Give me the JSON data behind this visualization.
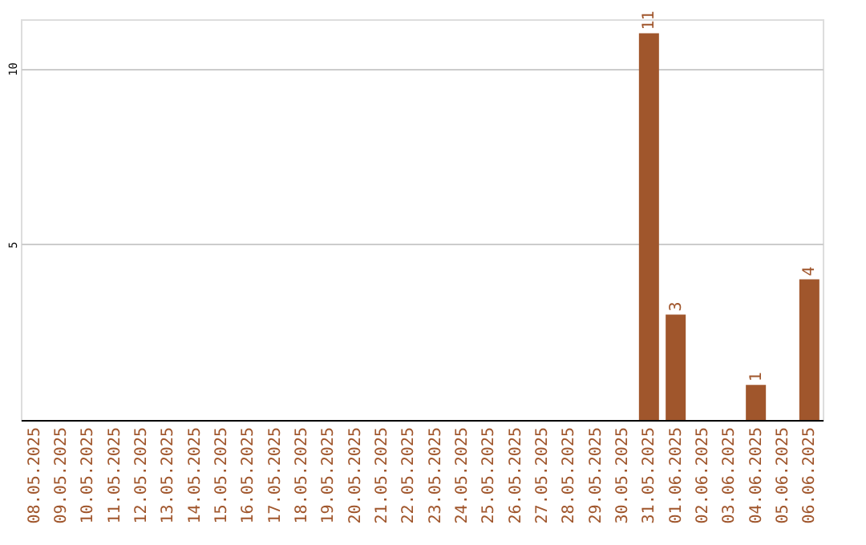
{
  "chart_data": {
    "type": "bar",
    "categories": [
      "08.05.2025",
      "09.05.2025",
      "10.05.2025",
      "11.05.2025",
      "12.05.2025",
      "13.05.2025",
      "14.05.2025",
      "15.05.2025",
      "16.05.2025",
      "17.05.2025",
      "18.05.2025",
      "19.05.2025",
      "20.05.2025",
      "21.05.2025",
      "22.05.2025",
      "23.05.2025",
      "24.05.2025",
      "25.05.2025",
      "26.05.2025",
      "27.05.2025",
      "28.05.2025",
      "29.05.2025",
      "30.05.2025",
      "31.05.2025",
      "01.06.2025",
      "02.06.2025",
      "03.06.2025",
      "04.06.2025",
      "05.06.2025",
      "06.06.2025"
    ],
    "values": [
      0,
      0,
      0,
      0,
      0,
      0,
      0,
      0,
      0,
      0,
      0,
      0,
      0,
      0,
      0,
      0,
      0,
      0,
      0,
      0,
      0,
      0,
      0,
      11,
      3,
      0,
      0,
      1,
      0,
      4
    ],
    "value_labels": [
      null,
      null,
      null,
      null,
      null,
      null,
      null,
      null,
      null,
      null,
      null,
      null,
      null,
      null,
      null,
      null,
      null,
      null,
      null,
      null,
      null,
      null,
      null,
      "11",
      "3",
      null,
      null,
      "1",
      null,
      "4"
    ],
    "color": "#a0562c",
    "ylim": [
      0,
      11.4
    ],
    "yticks": [
      5,
      10
    ],
    "grid": "y"
  }
}
